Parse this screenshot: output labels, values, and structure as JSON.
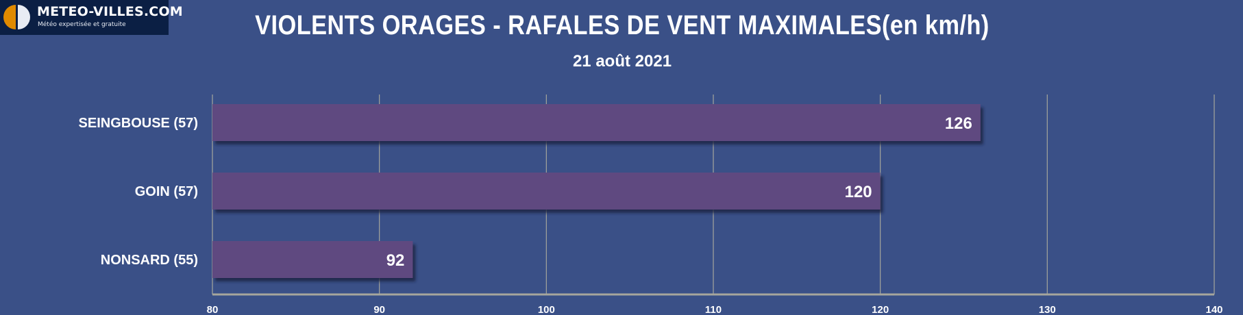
{
  "logo": {
    "name": "METEO-VILLES.COM",
    "tagline": "Météo expertisée et gratuite"
  },
  "chart_data": {
    "type": "bar",
    "orientation": "horizontal",
    "title": "VIOLENTS ORAGES - RAFALES DE VENT MAXIMALES(en km/h)",
    "subtitle": "21 août 2021",
    "categories": [
      "SEINGBOUSE (57)",
      "GOIN (57)",
      "NONSARD (55)"
    ],
    "values": [
      126,
      120,
      92
    ],
    "xlim": [
      80,
      140
    ],
    "xticks": [
      80,
      90,
      100,
      110,
      120,
      130,
      140
    ],
    "grid": true,
    "data_labels": true,
    "bar_color": "#5f4a80",
    "background_color": "#3a5087"
  }
}
